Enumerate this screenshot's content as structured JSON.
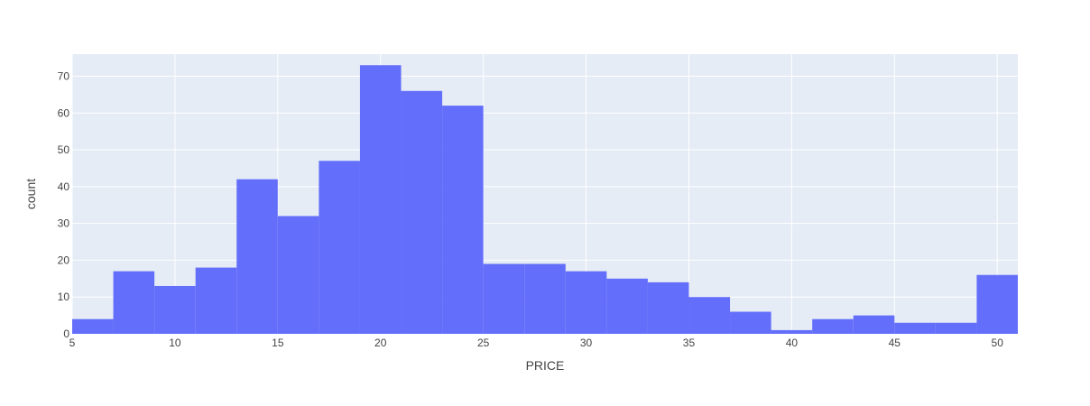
{
  "chart_data": {
    "type": "bar",
    "title": "",
    "xlabel": "PRICE",
    "ylabel": "count",
    "bin_edges": [
      5,
      7,
      9,
      11,
      13,
      15,
      17,
      19,
      21,
      23,
      25,
      27,
      29,
      31,
      33,
      35,
      37,
      39,
      41,
      43,
      45,
      47,
      49,
      51
    ],
    "values": [
      4,
      17,
      13,
      18,
      42,
      32,
      47,
      73,
      66,
      62,
      19,
      19,
      17,
      15,
      14,
      10,
      6,
      1,
      4,
      5,
      3,
      3,
      16
    ],
    "xlim": [
      5,
      51
    ],
    "ylim": [
      0,
      76
    ],
    "x_ticks": [
      5,
      10,
      15,
      20,
      25,
      30,
      35,
      40,
      45,
      50
    ],
    "y_ticks": [
      0,
      10,
      20,
      30,
      40,
      50,
      60,
      70
    ],
    "grid": true,
    "bar_color": "#636efa",
    "plot_bgcolor": "#e5ecf6",
    "grid_color": "#ffffff"
  }
}
